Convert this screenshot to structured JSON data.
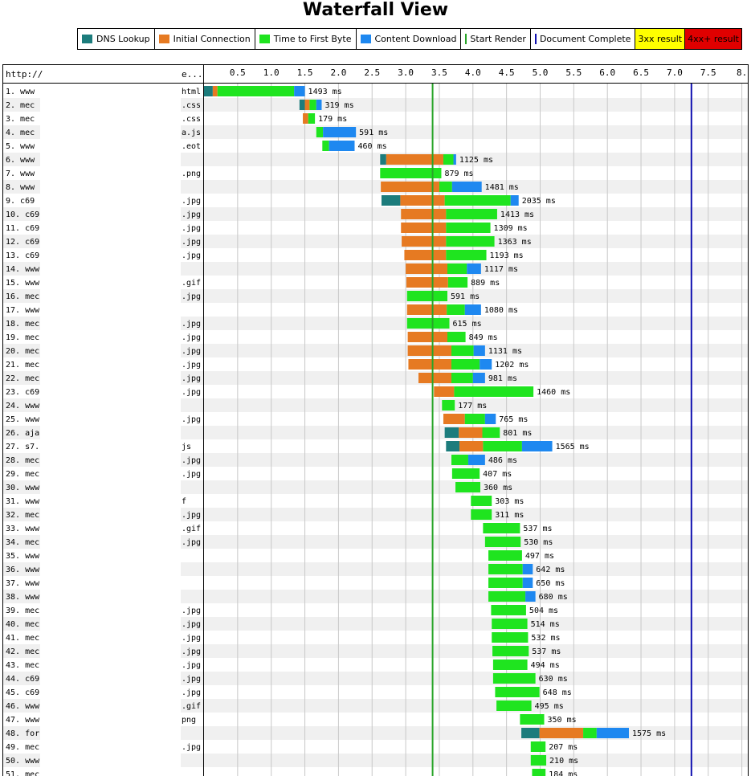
{
  "title": "Waterfall View",
  "legend": {
    "dns": "DNS Lookup",
    "connect": "Initial Connection",
    "ttfb": "Time to First Byte",
    "download": "Content Download",
    "render": "Start Render",
    "doc": "Document Complete",
    "r3xx": "3xx result",
    "r4xx": "4xx+ result"
  },
  "colors": {
    "dns": "#1c7c7c",
    "connect": "#e67a22",
    "ttfb": "#1fe41f",
    "download": "#1e88f0",
    "render": "#28a428",
    "doc": "#1010b0",
    "r3xx": "#ffff00",
    "r4xx": "#e00000"
  },
  "chart_data": {
    "type": "waterfall",
    "url_header": "http://",
    "ext_header": "e...",
    "x_unit": "seconds",
    "xlim": [
      0,
      8.0
    ],
    "ticks": [
      "0.5",
      "1.0",
      "1.5",
      "2.0",
      "2.5",
      "3.0",
      "3.5",
      "4.0",
      "4.5",
      "5.0",
      "5.5",
      "6.0",
      "6.5",
      "7.0",
      "7.5",
      "8."
    ],
    "start_render": 3.4,
    "document_complete": 7.25,
    "ms_suffix": "ms",
    "requests": [
      {
        "n": "1.",
        "h": "www",
        "e": "html",
        "s": 0.0,
        "dns": 0.13,
        "con": 0.07,
        "ttfb": 1.14,
        "dl": 0.16,
        "ms": "1493"
      },
      {
        "n": "2.",
        "h": "mec",
        "e": ".css",
        "s": 1.42,
        "dns": 0.08,
        "con": 0.07,
        "ttfb": 0.1,
        "dl": 0.08,
        "ms": "319"
      },
      {
        "n": "3.",
        "h": "mec",
        "e": ".css",
        "s": 1.47,
        "dns": 0,
        "con": 0.08,
        "ttfb": 0.1,
        "dl": 0,
        "ms": "179"
      },
      {
        "n": "4.",
        "h": "mec",
        "e": "a.js",
        "s": 1.67,
        "dns": 0,
        "con": 0,
        "ttfb": 0.1,
        "dl": 0.49,
        "ms": "591"
      },
      {
        "n": "5.",
        "h": "www",
        "e": ".eot",
        "s": 1.76,
        "dns": 0,
        "con": 0,
        "ttfb": 0.1,
        "dl": 0.38,
        "ms": "460"
      },
      {
        "n": "6.",
        "h": "www",
        "e": "",
        "s": 2.62,
        "dns": 0.09,
        "con": 0.85,
        "ttfb": 0.15,
        "dl": 0.04,
        "ms": "1125"
      },
      {
        "n": "7.",
        "h": "www",
        "e": ".png",
        "s": 2.62,
        "dns": 0,
        "con": 0,
        "ttfb": 0.91,
        "dl": 0,
        "ms": "879"
      },
      {
        "n": "8.",
        "h": "www",
        "e": "",
        "s": 2.63,
        "dns": 0,
        "con": 0.87,
        "ttfb": 0.19,
        "dl": 0.44,
        "ms": "1481"
      },
      {
        "n": "9.",
        "h": "c69",
        "e": ".jpg",
        "s": 2.64,
        "dns": 0.28,
        "con": 0.66,
        "ttfb": 0.98,
        "dl": 0.12,
        "ms": "2035"
      },
      {
        "n": "10.",
        "h": "c69",
        "e": ".jpg",
        "s": 2.93,
        "dns": 0,
        "con": 0.67,
        "ttfb": 0.76,
        "dl": 0,
        "ms": "1413"
      },
      {
        "n": "11.",
        "h": "c69",
        "e": ".jpg",
        "s": 2.93,
        "dns": 0,
        "con": 0.67,
        "ttfb": 0.66,
        "dl": 0,
        "ms": "1309"
      },
      {
        "n": "12.",
        "h": "c69",
        "e": ".jpg",
        "s": 2.94,
        "dns": 0,
        "con": 0.66,
        "ttfb": 0.72,
        "dl": 0,
        "ms": "1363"
      },
      {
        "n": "13.",
        "h": "c69",
        "e": ".jpg",
        "s": 2.98,
        "dns": 0,
        "con": 0.62,
        "ttfb": 0.6,
        "dl": 0,
        "ms": "1193"
      },
      {
        "n": "14.",
        "h": "www",
        "e": "",
        "s": 3.0,
        "dns": 0,
        "con": 0.62,
        "ttfb": 0.29,
        "dl": 0.21,
        "ms": "1117"
      },
      {
        "n": "15.",
        "h": "www",
        "e": ".gif",
        "s": 3.01,
        "dns": 0,
        "con": 0.62,
        "ttfb": 0.29,
        "dl": 0,
        "ms": "889"
      },
      {
        "n": "16.",
        "h": "mec",
        "e": ".jpg",
        "s": 3.02,
        "dns": 0,
        "con": 0,
        "ttfb": 0.6,
        "dl": 0,
        "ms": "591"
      },
      {
        "n": "17.",
        "h": "www",
        "e": "",
        "s": 3.02,
        "dns": 0,
        "con": 0.59,
        "ttfb": 0.27,
        "dl": 0.24,
        "ms": "1080"
      },
      {
        "n": "18.",
        "h": "mec",
        "e": ".jpg",
        "s": 3.02,
        "dns": 0,
        "con": 0,
        "ttfb": 0.63,
        "dl": 0,
        "ms": "615"
      },
      {
        "n": "19.",
        "h": "mec",
        "e": ".jpg",
        "s": 3.03,
        "dns": 0,
        "con": 0.59,
        "ttfb": 0.27,
        "dl": 0,
        "ms": "849"
      },
      {
        "n": "20.",
        "h": "mec",
        "e": ".jpg",
        "s": 3.03,
        "dns": 0,
        "con": 0.65,
        "ttfb": 0.33,
        "dl": 0.17,
        "ms": "1131"
      },
      {
        "n": "21.",
        "h": "mec",
        "e": ".jpg",
        "s": 3.04,
        "dns": 0,
        "con": 0.64,
        "ttfb": 0.42,
        "dl": 0.18,
        "ms": "1202"
      },
      {
        "n": "22.",
        "h": "mec",
        "e": ".jpg",
        "s": 3.19,
        "dns": 0,
        "con": 0.49,
        "ttfb": 0.32,
        "dl": 0.18,
        "ms": "981"
      },
      {
        "n": "23.",
        "h": "c69",
        "e": ".jpg",
        "s": 3.42,
        "dns": 0,
        "con": 0.3,
        "ttfb": 1.18,
        "dl": 0,
        "ms": "1460"
      },
      {
        "n": "24.",
        "h": "www",
        "e": "",
        "s": 3.54,
        "dns": 0,
        "con": 0,
        "ttfb": 0.19,
        "dl": 0,
        "ms": "177"
      },
      {
        "n": "25.",
        "h": "www",
        "e": ".jpg",
        "s": 3.56,
        "dns": 0,
        "con": 0.32,
        "ttfb": 0.3,
        "dl": 0.16,
        "ms": "765"
      },
      {
        "n": "26.",
        "h": "aja",
        "e": "",
        "s": 3.58,
        "dns": 0.21,
        "con": 0.35,
        "ttfb": 0.26,
        "dl": 0,
        "ms": "801"
      },
      {
        "n": "27.",
        "h": "s7.",
        "e": "js",
        "s": 3.6,
        "dns": 0.2,
        "con": 0.35,
        "ttfb": 0.58,
        "dl": 0.45,
        "ms": "1565"
      },
      {
        "n": "28.",
        "h": "mec",
        "e": ".jpg",
        "s": 3.68,
        "dns": 0,
        "con": 0,
        "ttfb": 0.25,
        "dl": 0.25,
        "ms": "486"
      },
      {
        "n": "29.",
        "h": "mec",
        "e": ".jpg",
        "s": 3.69,
        "dns": 0,
        "con": 0,
        "ttfb": 0.41,
        "dl": 0,
        "ms": "407"
      },
      {
        "n": "30.",
        "h": "www",
        "e": "",
        "s": 3.74,
        "dns": 0,
        "con": 0,
        "ttfb": 0.37,
        "dl": 0,
        "ms": "360"
      },
      {
        "n": "31.",
        "h": "www",
        "e": "f",
        "s": 3.97,
        "dns": 0,
        "con": 0,
        "ttfb": 0.31,
        "dl": 0,
        "ms": "303"
      },
      {
        "n": "32.",
        "h": "mec",
        "e": ".jpg",
        "s": 3.97,
        "dns": 0,
        "con": 0,
        "ttfb": 0.31,
        "dl": 0,
        "ms": "311"
      },
      {
        "n": "33.",
        "h": "www",
        "e": ".gif",
        "s": 4.15,
        "dns": 0,
        "con": 0,
        "ttfb": 0.55,
        "dl": 0,
        "ms": "537"
      },
      {
        "n": "34.",
        "h": "mec",
        "e": ".jpg",
        "s": 4.18,
        "dns": 0,
        "con": 0,
        "ttfb": 0.53,
        "dl": 0,
        "ms": "530"
      },
      {
        "n": "35.",
        "h": "www",
        "e": "",
        "s": 4.23,
        "dns": 0,
        "con": 0,
        "ttfb": 0.5,
        "dl": 0,
        "ms": "497"
      },
      {
        "n": "36.",
        "h": "www",
        "e": "",
        "s": 4.23,
        "dns": 0,
        "con": 0,
        "ttfb": 0.51,
        "dl": 0.15,
        "ms": "642"
      },
      {
        "n": "37.",
        "h": "www",
        "e": "",
        "s": 4.23,
        "dns": 0,
        "con": 0,
        "ttfb": 0.51,
        "dl": 0.15,
        "ms": "650"
      },
      {
        "n": "38.",
        "h": "www",
        "e": "",
        "s": 4.23,
        "dns": 0,
        "con": 0,
        "ttfb": 0.55,
        "dl": 0.15,
        "ms": "680"
      },
      {
        "n": "39.",
        "h": "mec",
        "e": ".jpg",
        "s": 4.27,
        "dns": 0,
        "con": 0,
        "ttfb": 0.52,
        "dl": 0,
        "ms": "504"
      },
      {
        "n": "40.",
        "h": "mec",
        "e": ".jpg",
        "s": 4.28,
        "dns": 0,
        "con": 0,
        "ttfb": 0.53,
        "dl": 0,
        "ms": "514"
      },
      {
        "n": "41.",
        "h": "mec",
        "e": ".jpg",
        "s": 4.28,
        "dns": 0,
        "con": 0,
        "ttfb": 0.54,
        "dl": 0,
        "ms": "532"
      },
      {
        "n": "42.",
        "h": "mec",
        "e": ".jpg",
        "s": 4.29,
        "dns": 0,
        "con": 0,
        "ttfb": 0.54,
        "dl": 0,
        "ms": "537"
      },
      {
        "n": "43.",
        "h": "mec",
        "e": ".jpg",
        "s": 4.3,
        "dns": 0,
        "con": 0,
        "ttfb": 0.51,
        "dl": 0,
        "ms": "494"
      },
      {
        "n": "44.",
        "h": "c69",
        "e": ".jpg",
        "s": 4.3,
        "dns": 0,
        "con": 0,
        "ttfb": 0.63,
        "dl": 0,
        "ms": "630"
      },
      {
        "n": "45.",
        "h": "c69",
        "e": ".jpg",
        "s": 4.33,
        "dns": 0,
        "con": 0,
        "ttfb": 0.66,
        "dl": 0,
        "ms": "648"
      },
      {
        "n": "46.",
        "h": "www",
        "e": ".gif",
        "s": 4.35,
        "dns": 0,
        "con": 0,
        "ttfb": 0.52,
        "dl": 0,
        "ms": "495"
      },
      {
        "n": "47.",
        "h": "www",
        "e": "png",
        "s": 4.7,
        "dns": 0,
        "con": 0,
        "ttfb": 0.36,
        "dl": 0,
        "ms": "350"
      },
      {
        "n": "48.",
        "h": "for",
        "e": "",
        "s": 4.72,
        "dns": 0.27,
        "con": 0.65,
        "ttfb": 0.2,
        "dl": 0.48,
        "ms": "1575"
      },
      {
        "n": "49.",
        "h": "mec",
        "e": ".jpg",
        "s": 4.86,
        "dns": 0,
        "con": 0,
        "ttfb": 0.22,
        "dl": 0,
        "ms": "207"
      },
      {
        "n": "50.",
        "h": "www",
        "e": "",
        "s": 4.86,
        "dns": 0,
        "con": 0,
        "ttfb": 0.23,
        "dl": 0,
        "ms": "210"
      },
      {
        "n": "51.",
        "h": "mec",
        "e": "",
        "s": 4.88,
        "dns": 0,
        "con": 0,
        "ttfb": 0.2,
        "dl": 0,
        "ms": "184"
      }
    ]
  }
}
